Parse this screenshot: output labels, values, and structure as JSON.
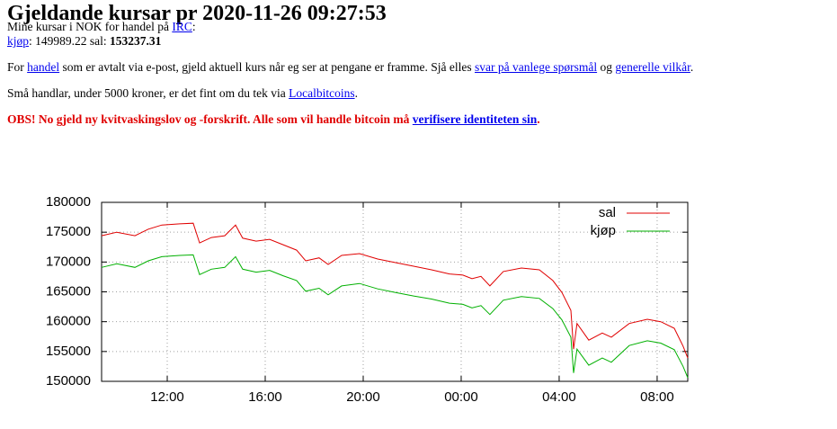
{
  "header": {
    "title": "Gjeldande kursar pr 2020-11-26 09:27:53"
  },
  "blocks": [
    [
      [
        {
          "text": "Mine kursar i NOK for handel på "
        },
        {
          "text": "IRC",
          "link": true
        },
        {
          "text": ":"
        }
      ],
      [
        {
          "text": "kjøp",
          "link": true
        },
        {
          "text": ": 149989.22  sal: "
        },
        {
          "text": "153237.31",
          "bold": true
        }
      ]
    ],
    [
      [
        {
          "text": "For "
        },
        {
          "text": "handel",
          "link": true
        },
        {
          "text": " som er avtalt via e-post, gjeld aktuell kurs når eg ser at pengane er framme. Sjå elles "
        },
        {
          "text": "svar på vanlege spørsmål",
          "link": true
        },
        {
          "text": " og "
        },
        {
          "text": "generelle vilkår",
          "link": true
        },
        {
          "text": "."
        }
      ]
    ],
    [
      [
        {
          "text": "Små handlar, under 5000 kroner, er det fint om du tek via "
        },
        {
          "text": "Localbitcoins",
          "link": true
        },
        {
          "text": "."
        }
      ]
    ],
    [
      [
        {
          "text": "OBS! No gjeld ny kvitvaskingslov og -forskrift. Alle som vil handle bitcoin må "
        },
        {
          "text": "verifisere identiteten sin",
          "link": true
        },
        {
          "text": "."
        }
      ]
    ]
  ],
  "chart_data": {
    "type": "line",
    "x": [
      9.32,
      9.94,
      10.68,
      11.23,
      11.78,
      12.51,
      13.06,
      13.32,
      13.8,
      14.35,
      14.79,
      15.08,
      15.63,
      16.18,
      16.73,
      17.28,
      17.65,
      18.2,
      18.57,
      19.12,
      19.85,
      20.59,
      21.32,
      22.06,
      22.79,
      23.52,
      24.07,
      24.44,
      24.81,
      25.17,
      25.72,
      26.46,
      27.19,
      27.74,
      28.11,
      28.48,
      28.59,
      28.73,
      29.21,
      29.76,
      30.13,
      30.86,
      31.6,
      32.15,
      32.7,
      33.06,
      33.25
    ],
    "series": [
      {
        "name": "sal",
        "color": "#e00000",
        "values": [
          174400,
          175000,
          174400,
          175500,
          176200,
          176400,
          176500,
          173200,
          174100,
          174400,
          176200,
          174000,
          173500,
          173800,
          172900,
          172000,
          170200,
          170700,
          169600,
          171100,
          171400,
          170500,
          169900,
          169300,
          168700,
          168000,
          167800,
          167200,
          167600,
          166000,
          168400,
          169000,
          168700,
          166900,
          164900,
          161900,
          155400,
          159700,
          156900,
          158100,
          157400,
          159700,
          160400,
          160000,
          158900,
          155900,
          153900
        ]
      },
      {
        "name": "kjøp",
        "color": "#00b000",
        "values": [
          169100,
          169700,
          169100,
          170200,
          170900,
          171100,
          171200,
          167900,
          168800,
          169100,
          170900,
          168800,
          168300,
          168600,
          167700,
          166900,
          165100,
          165600,
          164500,
          166000,
          166400,
          165500,
          164900,
          164300,
          163800,
          163100,
          162900,
          162300,
          162700,
          161200,
          163600,
          164200,
          163900,
          162200,
          160300,
          157400,
          151400,
          155400,
          152700,
          153900,
          153200,
          156000,
          156800,
          156400,
          155300,
          152500,
          150600
        ]
      }
    ],
    "xlim": [
      9.32,
      33.25
    ],
    "xticks": [
      {
        "value": 12,
        "label": "12:00"
      },
      {
        "value": 16,
        "label": "16:00"
      },
      {
        "value": 20,
        "label": "20:00"
      },
      {
        "value": 24,
        "label": "00:00"
      },
      {
        "value": 28,
        "label": "04:00"
      },
      {
        "value": 32,
        "label": "08:00"
      }
    ],
    "ylim": [
      150000,
      180000
    ],
    "yticks": [
      150000,
      155000,
      160000,
      165000,
      170000,
      175000,
      180000
    ],
    "grid": true,
    "legend": "upper right"
  }
}
